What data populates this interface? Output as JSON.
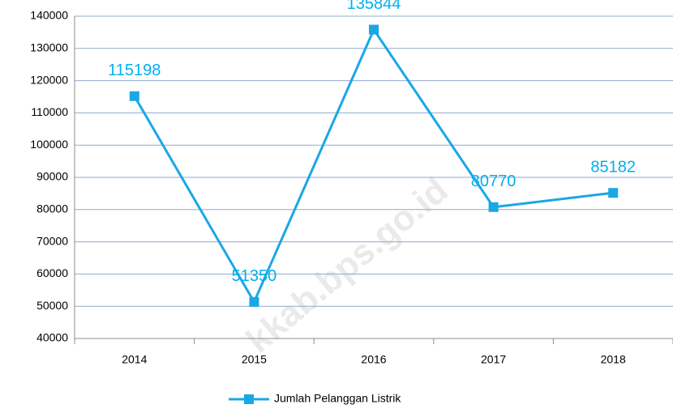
{
  "chart_data": {
    "type": "line",
    "categories": [
      "2014",
      "2015",
      "2016",
      "2017",
      "2018"
    ],
    "series": [
      {
        "name": "Jumlah Pelanggan Listrik",
        "color": "#1aa7e6",
        "values": [
          115198,
          51350,
          135844,
          80770,
          85182
        ]
      }
    ],
    "label_color": "#00b0f0",
    "ylim": [
      40000,
      140000
    ],
    "yticks": [
      40000,
      50000,
      60000,
      70000,
      80000,
      90000,
      100000,
      110000,
      120000,
      130000,
      140000
    ],
    "grid": true,
    "grid_color": "#8eaad0",
    "legend": "bottom",
    "watermark": "kkab.bps.go.id"
  }
}
